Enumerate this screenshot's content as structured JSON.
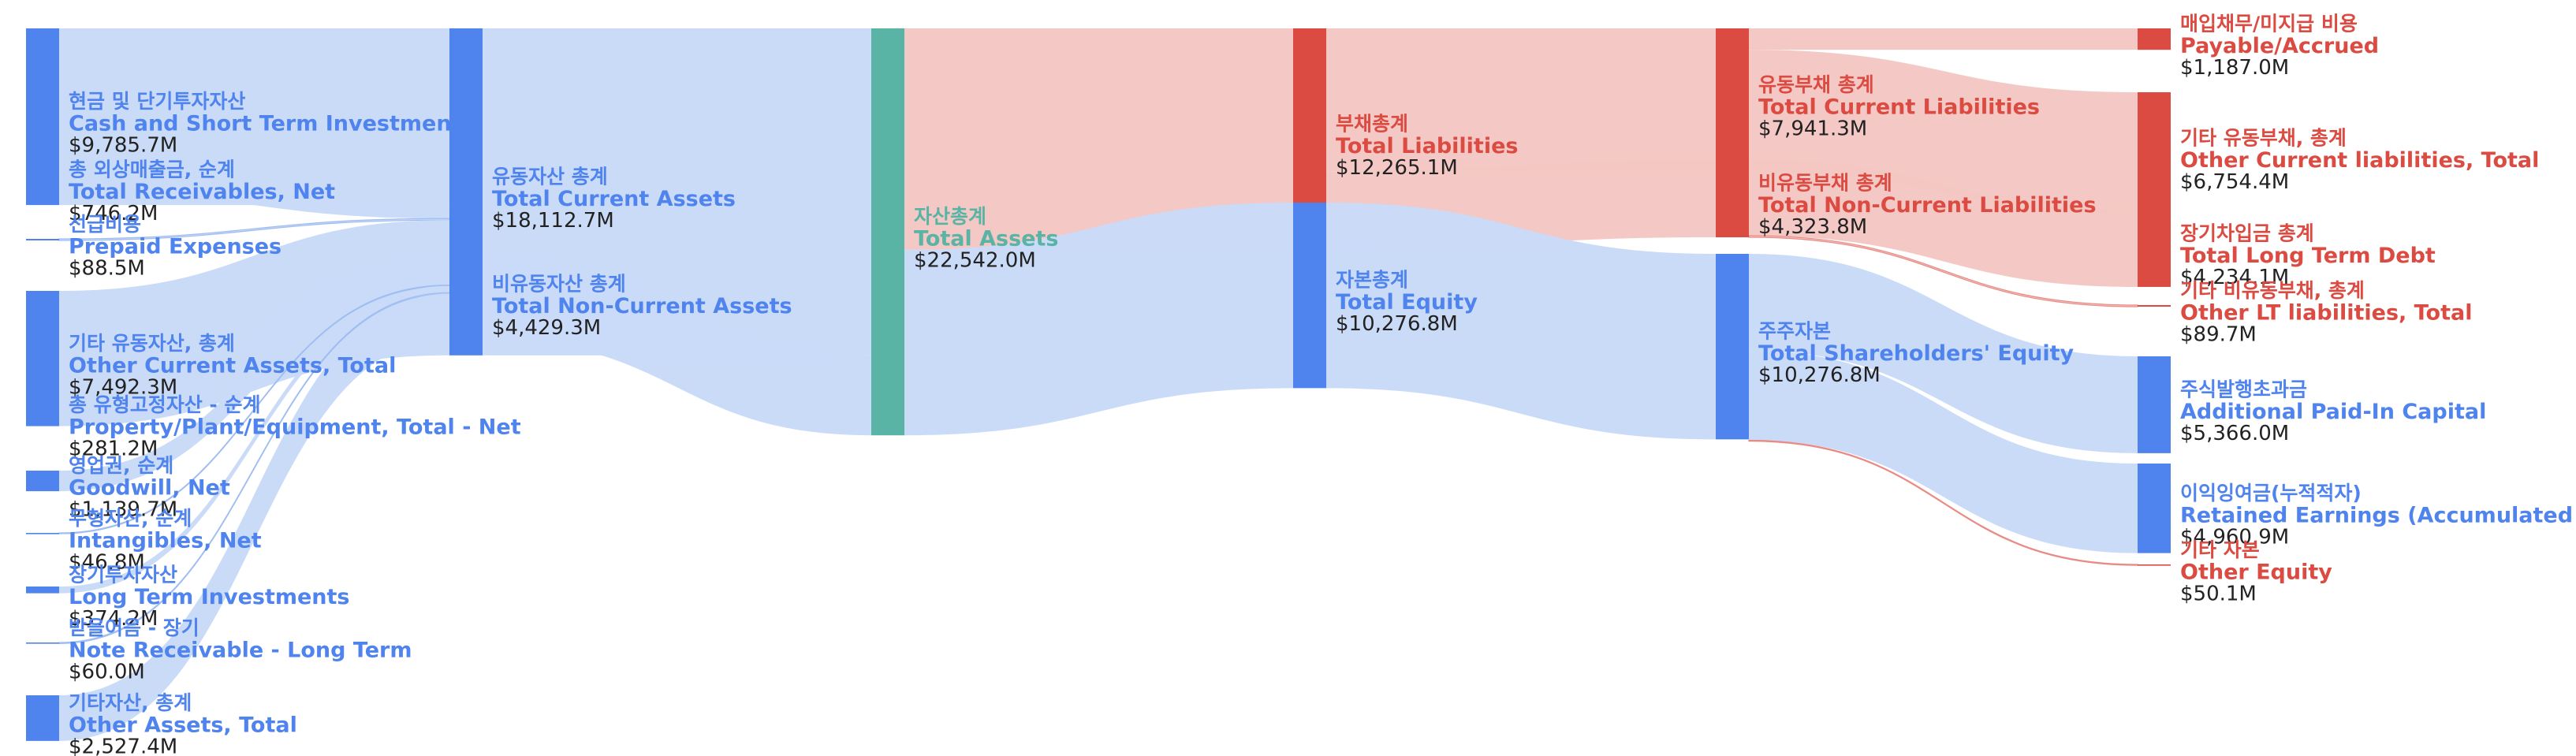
{
  "colors": {
    "asset": "#4f83ee",
    "liability": "#db4b42",
    "total": "#5ab4a5",
    "asset_link": "#c9daf8",
    "liability_link": "#f4c7c3"
  },
  "chart_data": {
    "type": "sankey",
    "title": "",
    "unit": "$M",
    "nodes": [
      {
        "id": "cash",
        "kr": "현금 및 단기투자자산",
        "en": "Cash and Short Term Investments",
        "value": "$9,785.7M",
        "amount": 9785.7,
        "group": "asset"
      },
      {
        "id": "receivables",
        "kr": "총 외상매출금, 순계",
        "en": "Total Receivables, Net",
        "value": "$746.2M",
        "amount": 746.2,
        "group": "asset"
      },
      {
        "id": "prepaid",
        "kr": "선급비용",
        "en": "Prepaid Expenses",
        "value": "$88.5M",
        "amount": 88.5,
        "group": "asset"
      },
      {
        "id": "other_current_assets",
        "kr": "기타 유동자산, 총계",
        "en": "Other Current Assets, Total",
        "value": "$7,492.3M",
        "amount": 7492.3,
        "group": "asset"
      },
      {
        "id": "ppe",
        "kr": "총 유형고정자산 - 순계",
        "en": "Property/Plant/Equipment, Total - Net",
        "value": "$281.2M",
        "amount": 281.2,
        "group": "asset"
      },
      {
        "id": "goodwill",
        "kr": "영업권, 순계",
        "en": "Goodwill, Net",
        "value": "$1,139.7M",
        "amount": 1139.7,
        "group": "asset"
      },
      {
        "id": "intangibles",
        "kr": "무형자산, 순계",
        "en": "Intangibles, Net",
        "value": "$46.8M",
        "amount": 46.8,
        "group": "asset"
      },
      {
        "id": "lt_investments",
        "kr": "장기투자자산",
        "en": "Long Term Investments",
        "value": "$374.2M",
        "amount": 374.2,
        "group": "asset"
      },
      {
        "id": "note_receivable",
        "kr": "받을어음 - 장기",
        "en": "Note Receivable - Long Term",
        "value": "$60.0M",
        "amount": 60.0,
        "group": "asset"
      },
      {
        "id": "other_assets",
        "kr": "기타자산, 총계",
        "en": "Other Assets, Total",
        "value": "$2,527.4M",
        "amount": 2527.4,
        "group": "asset"
      },
      {
        "id": "total_current_assets",
        "kr": "유동자산 총계",
        "en": "Total Current Assets",
        "value": "$18,112.7M",
        "amount": 18112.7,
        "group": "asset"
      },
      {
        "id": "total_noncurrent_assets",
        "kr": "비유동자산 총계",
        "en": "Total Non-Current Assets",
        "value": "$4,429.3M",
        "amount": 4429.3,
        "group": "asset"
      },
      {
        "id": "total_assets",
        "kr": "자산총계",
        "en": "Total Assets",
        "value": "$22,542.0M",
        "amount": 22542.0,
        "group": "total"
      },
      {
        "id": "total_liabilities",
        "kr": "부채총계",
        "en": "Total Liabilities",
        "value": "$12,265.1M",
        "amount": 12265.1,
        "group": "liability"
      },
      {
        "id": "total_equity",
        "kr": "자본총계",
        "en": "Total Equity",
        "value": "$10,276.8M",
        "amount": 10276.8,
        "group": "asset"
      },
      {
        "id": "total_current_liabilities",
        "kr": "유동부채 총계",
        "en": "Total Current Liabilities",
        "value": "$7,941.3M",
        "amount": 7941.3,
        "group": "liability"
      },
      {
        "id": "total_noncurrent_liabilities",
        "kr": "비유동부채 총계",
        "en": "Total Non-Current Liabilities",
        "value": "$4,323.8M",
        "amount": 4323.8,
        "group": "liability"
      },
      {
        "id": "shareholders_equity",
        "kr": "주주자본",
        "en": "Total Shareholders' Equity",
        "value": "$10,276.8M",
        "amount": 10276.8,
        "group": "asset"
      },
      {
        "id": "payable",
        "kr": "매입채무/미지급 비용",
        "en": "Payable/Accrued",
        "value": "$1,187.0M",
        "amount": 1187.0,
        "group": "liability"
      },
      {
        "id": "other_current_liabilities",
        "kr": "기타 유동부채, 총계",
        "en": "Other Current liabilities, Total",
        "value": "$6,754.4M",
        "amount": 6754.4,
        "group": "liability"
      },
      {
        "id": "lt_debt",
        "kr": "장기차입금 총계",
        "en": "Total Long Term Debt",
        "value": "$4,234.1M",
        "amount": 4234.1,
        "group": "liability"
      },
      {
        "id": "other_lt_liabilities",
        "kr": "기타 비유동부채, 총계",
        "en": "Other LT liabilities, Total",
        "value": "$89.7M",
        "amount": 89.7,
        "group": "liability"
      },
      {
        "id": "apic",
        "kr": "주식발행초과금",
        "en": "Additional Paid-In Capital",
        "value": "$5,366.0M",
        "amount": 5366.0,
        "group": "asset"
      },
      {
        "id": "retained_earnings",
        "kr": "이익잉여금(누적적자)",
        "en": "Retained Earnings (Accumulated Deficit)",
        "value": "$4,960.9M",
        "amount": 4960.9,
        "group": "asset"
      },
      {
        "id": "other_equity",
        "kr": "기타 자본",
        "en": "Other Equity",
        "value": "$50.1M",
        "amount": 50.1,
        "group": "liability"
      }
    ],
    "links": [
      {
        "source": "cash",
        "target": "total_current_assets",
        "value": 9785.7
      },
      {
        "source": "receivables",
        "target": "total_current_assets",
        "value": 746.2
      },
      {
        "source": "prepaid",
        "target": "total_current_assets",
        "value": 88.5
      },
      {
        "source": "other_current_assets",
        "target": "total_current_assets",
        "value": 7492.3
      },
      {
        "source": "ppe",
        "target": "total_noncurrent_assets",
        "value": 281.2
      },
      {
        "source": "goodwill",
        "target": "total_noncurrent_assets",
        "value": 1139.7
      },
      {
        "source": "intangibles",
        "target": "total_noncurrent_assets",
        "value": 46.8
      },
      {
        "source": "lt_investments",
        "target": "total_noncurrent_assets",
        "value": 374.2
      },
      {
        "source": "note_receivable",
        "target": "total_noncurrent_assets",
        "value": 60.0
      },
      {
        "source": "other_assets",
        "target": "total_noncurrent_assets",
        "value": 2527.4
      },
      {
        "source": "total_current_assets",
        "target": "total_assets",
        "value": 18112.7
      },
      {
        "source": "total_noncurrent_assets",
        "target": "total_assets",
        "value": 4429.3
      },
      {
        "source": "total_assets",
        "target": "total_liabilities",
        "value": 12265.1
      },
      {
        "source": "total_assets",
        "target": "total_equity",
        "value": 10276.8
      },
      {
        "source": "total_liabilities",
        "target": "total_current_liabilities",
        "value": 7941.3
      },
      {
        "source": "total_liabilities",
        "target": "total_noncurrent_liabilities",
        "value": 4323.8
      },
      {
        "source": "total_equity",
        "target": "shareholders_equity",
        "value": 10276.8
      },
      {
        "source": "total_current_liabilities",
        "target": "payable",
        "value": 1187.0
      },
      {
        "source": "total_current_liabilities",
        "target": "other_current_liabilities",
        "value": 6754.4
      },
      {
        "source": "total_noncurrent_liabilities",
        "target": "lt_debt",
        "value": 4234.1
      },
      {
        "source": "total_noncurrent_liabilities",
        "target": "other_lt_liabilities",
        "value": 89.7
      },
      {
        "source": "shareholders_equity",
        "target": "apic",
        "value": 5366.0
      },
      {
        "source": "shareholders_equity",
        "target": "retained_earnings",
        "value": 4960.9
      },
      {
        "source": "shareholders_equity",
        "target": "other_equity",
        "value": 50.1
      }
    ]
  }
}
